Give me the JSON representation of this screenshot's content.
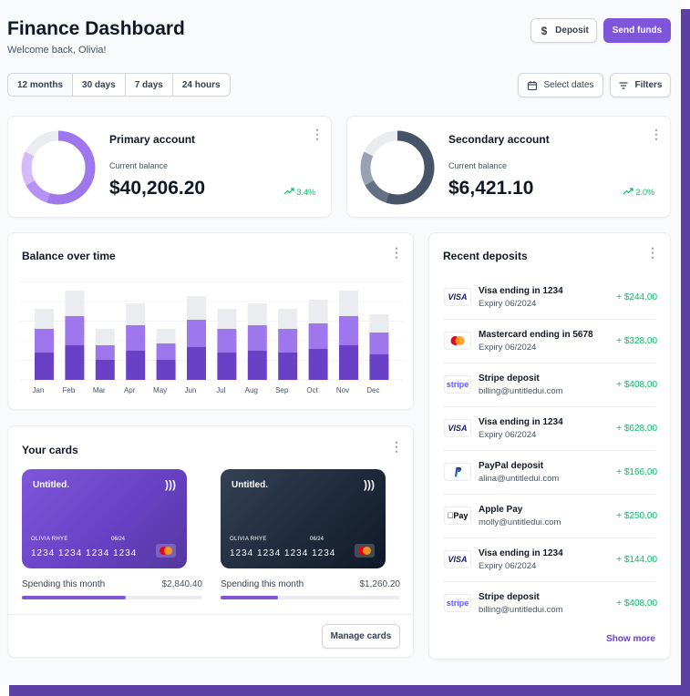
{
  "header": {
    "title": "Finance Dashboard",
    "subtitle": "Welcome back, Olivia!",
    "deposit_label": "Deposit",
    "send_funds_label": "Send funds"
  },
  "filters": {
    "ranges": [
      "12 months",
      "30 days",
      "7 days",
      "24 hours"
    ],
    "active_range": "12 months",
    "select_dates_label": "Select dates",
    "filters_label": "Filters"
  },
  "accounts": {
    "primary": {
      "name": "Primary account",
      "balance_label": "Current balance",
      "balance": "$40,206.20",
      "trend": "3.4%",
      "donut": [
        {
          "share": 0.55,
          "color": "#9e77ed"
        },
        {
          "share": 0.12,
          "color": "#b692f6"
        },
        {
          "share": 0.15,
          "color": "#d6bbfb"
        },
        {
          "share": 0.18,
          "color": "#eaecf0"
        }
      ]
    },
    "secondary": {
      "name": "Secondary account",
      "balance_label": "Current balance",
      "balance": "$6,421.10",
      "trend": "2.0%",
      "donut": [
        {
          "share": 0.55,
          "color": "#475467"
        },
        {
          "share": 0.12,
          "color": "#667085"
        },
        {
          "share": 0.15,
          "color": "#98a2b3"
        },
        {
          "share": 0.18,
          "color": "#eaecf0"
        }
      ]
    }
  },
  "balance_chart": {
    "title": "Balance over time",
    "months": [
      "Jan",
      "Feb",
      "Mar",
      "Apr",
      "May",
      "Jun",
      "Jul",
      "Aug",
      "Sep",
      "Oct",
      "Nov",
      "Dec"
    ],
    "series": [
      {
        "color": "#6941c6",
        "values": [
          30,
          38,
          22,
          32,
          22,
          36,
          30,
          32,
          30,
          34,
          38,
          28
        ]
      },
      {
        "color": "#9e77ed",
        "values": [
          26,
          32,
          16,
          28,
          18,
          30,
          26,
          28,
          26,
          28,
          32,
          24
        ]
      },
      {
        "color": "#eaecf0",
        "values": [
          22,
          28,
          18,
          24,
          16,
          26,
          22,
          24,
          22,
          26,
          28,
          20
        ]
      }
    ]
  },
  "cards": {
    "title": "Your cards",
    "items": [
      {
        "brand": "Untitled.",
        "holder": "OLIVIA RHYE",
        "expiry": "06/24",
        "number": "1234 1234 1234 1234",
        "spend_label": "Spending this month",
        "spend_amount": "$2,840.40",
        "spend_fraction": 0.58
      },
      {
        "brand": "Untitled.",
        "holder": "OLIVIA RHYE",
        "expiry": "06/24",
        "number": "1234 1234 1234 1234",
        "spend_label": "Spending this month",
        "spend_amount": "$1,260.20",
        "spend_fraction": 0.32
      }
    ],
    "manage_label": "Manage cards"
  },
  "deposits": {
    "title": "Recent deposits",
    "show_more_label": "Show more",
    "items": [
      {
        "logo": "VISA",
        "name": "Visa ending in 1234",
        "sub": "Expiry 06/2024",
        "amount": "+ $244.00"
      },
      {
        "logo": "mastercard",
        "name": "Mastercard ending in 5678",
        "sub": "Expiry 06/2024",
        "amount": "+ $328.00"
      },
      {
        "logo": "stripe",
        "name": "Stripe deposit",
        "sub": "billing@untitledui.com",
        "amount": "+ $408.00"
      },
      {
        "logo": "VISA",
        "name": "Visa ending in 1234",
        "sub": "Expiry 06/2024",
        "amount": "+ $628.00"
      },
      {
        "logo": "paypal",
        "name": "PayPal deposit",
        "sub": "alina@untitledui.com",
        "amount": "+ $166.00"
      },
      {
        "logo": "Pay",
        "name": "Apple Pay",
        "sub": "molly@untitledui.com",
        "amount": "+ $250.00"
      },
      {
        "logo": "VISA",
        "name": "Visa ending in 1234",
        "sub": "Expiry 06/2024",
        "amount": "+ $144.00"
      },
      {
        "logo": "stripe",
        "name": "Stripe deposit",
        "sub": "billing@untitledui.com",
        "amount": "+ $408.00"
      }
    ]
  }
}
